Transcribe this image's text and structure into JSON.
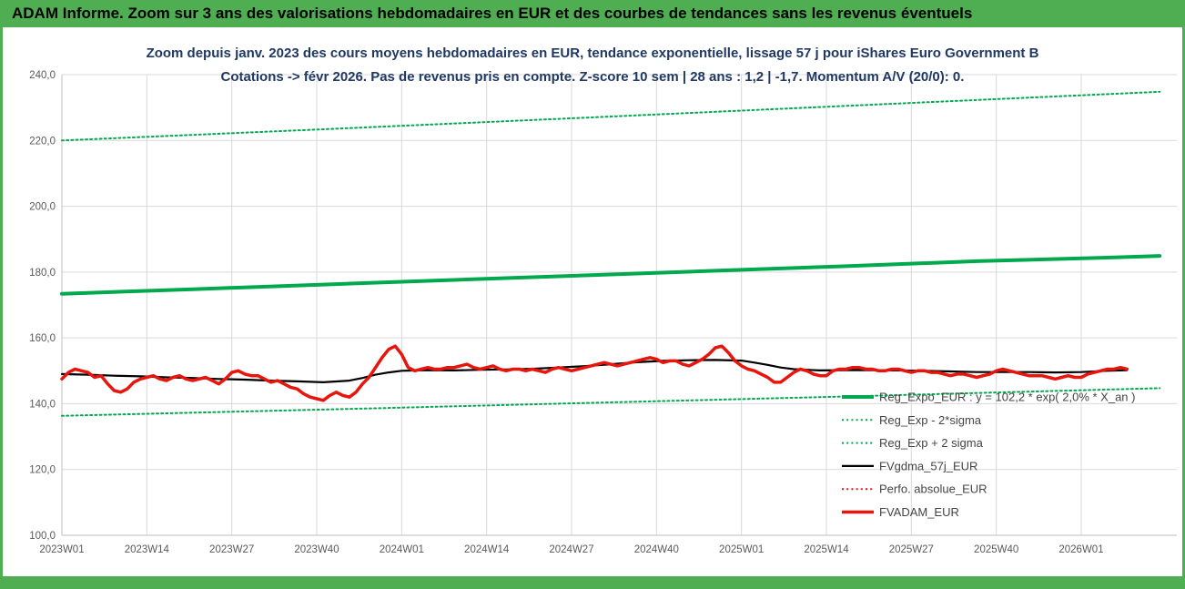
{
  "window": {
    "top_banner": "ADAM Informe. Zoom sur 3 ans des valorisations hebdomadaires en EUR et des courbes de tendances sans les revenus éventuels"
  },
  "colors": {
    "banner_green": "#4fae51",
    "series_green": "#00a94e",
    "series_red": "#e8150d",
    "series_black": "#000000",
    "grid": "#d9d9d9",
    "axis_line": "#bfbfbf",
    "axis_text": "#595959",
    "title_text": "#1f3864",
    "legend_text": "#444444"
  },
  "chart_data": {
    "type": "line",
    "title_line1": "Zoom depuis janv. 2023 des cours moyens hebdomadaires en EUR, tendance exponentielle, lissage 57 j pour iShares Euro Government B",
    "title_line2": "Cotations -> févr 2026. Pas de revenus pris en compte. Z-score 10 sem | 28 ans : 1,2 | -1,7. Momentum A/V (20/0): 0.",
    "y_axis": {
      "min": 100,
      "max": 240,
      "step": 20,
      "tick_labels": [
        "100,0",
        "120,0",
        "140,0",
        "160,0",
        "180,0",
        "200,0",
        "220,0",
        "240,0"
      ]
    },
    "x_axis": {
      "unit": "ISO week",
      "tick_labels": [
        "2023W01",
        "2023W14",
        "2023W27",
        "2023W40",
        "2024W01",
        "2024W14",
        "2024W27",
        "2024W40",
        "2025W01",
        "2025W14",
        "2025W27",
        "2025W40",
        "2026W01"
      ],
      "tick_weeks": [
        0,
        13,
        26,
        39,
        52,
        65,
        78,
        91,
        104,
        117,
        130,
        143,
        156
      ],
      "max_week": 168
    },
    "legend_position": "center-right",
    "grid": true,
    "series": [
      {
        "name": "Reg_Expo_EUR : y = 102,2 * exp( 2,0% *  X_an )",
        "color": "#00a94e",
        "width": 4,
        "dash": "solid",
        "points": [
          [
            0,
            173.4
          ],
          [
            20,
            174.8
          ],
          [
            40,
            176.2
          ],
          [
            60,
            177.6
          ],
          [
            80,
            179.0
          ],
          [
            100,
            180.4
          ],
          [
            120,
            181.8
          ],
          [
            140,
            183.3
          ],
          [
            160,
            184.4
          ],
          [
            168,
            184.9
          ]
        ]
      },
      {
        "name": "Reg_Exp - 2*sigma",
        "color": "#00a94e",
        "width": 2,
        "dash": "dot",
        "points": [
          [
            0,
            136.3
          ],
          [
            40,
            138.2
          ],
          [
            80,
            140.2
          ],
          [
            120,
            142.2
          ],
          [
            168,
            144.7
          ]
        ]
      },
      {
        "name": "Reg_Exp + 2 sigma",
        "color": "#00a94e",
        "width": 2,
        "dash": "dot",
        "points": [
          [
            0,
            220.0
          ],
          [
            40,
            223.4
          ],
          [
            80,
            226.9
          ],
          [
            120,
            230.5
          ],
          [
            168,
            234.8
          ]
        ]
      },
      {
        "name": "FVgdma_57j_EUR",
        "color": "#000000",
        "width": 2.2,
        "dash": "solid",
        "points": [
          [
            0,
            149
          ],
          [
            4,
            148.8
          ],
          [
            8,
            148.5
          ],
          [
            12,
            148.3
          ],
          [
            16,
            148
          ],
          [
            20,
            147.8
          ],
          [
            24,
            147.5
          ],
          [
            28,
            147.3
          ],
          [
            32,
            147
          ],
          [
            36,
            146.8
          ],
          [
            40,
            146.5
          ],
          [
            44,
            147
          ],
          [
            46,
            147.8
          ],
          [
            48,
            148.8
          ],
          [
            50,
            149.5
          ],
          [
            52,
            150
          ],
          [
            56,
            150.2
          ],
          [
            60,
            150.1
          ],
          [
            64,
            150.3
          ],
          [
            68,
            150.4
          ],
          [
            72,
            150.6
          ],
          [
            76,
            151
          ],
          [
            80,
            151.4
          ],
          [
            84,
            152
          ],
          [
            88,
            152.6
          ],
          [
            92,
            153
          ],
          [
            96,
            153.2
          ],
          [
            100,
            153.3
          ],
          [
            104,
            153.1
          ],
          [
            106,
            152.5
          ],
          [
            108,
            151.8
          ],
          [
            110,
            151
          ],
          [
            112,
            150.5
          ],
          [
            116,
            150.1
          ],
          [
            120,
            150.2
          ],
          [
            124,
            150.2
          ],
          [
            128,
            150.1
          ],
          [
            132,
            150
          ],
          [
            136,
            149.8
          ],
          [
            140,
            149.6
          ],
          [
            144,
            149.6
          ],
          [
            148,
            149.6
          ],
          [
            152,
            149.5
          ],
          [
            156,
            149.6
          ],
          [
            160,
            150
          ],
          [
            163,
            150.2
          ]
        ]
      },
      {
        "name": "Perfo. absolue_EUR",
        "color": "#e8150d",
        "width": 2,
        "dash": "dot",
        "points": []
      },
      {
        "name": "FVADAM_EUR",
        "color": "#e8150d",
        "width": 3.5,
        "dash": "solid",
        "points": [
          [
            0,
            147.5
          ],
          [
            1,
            149.5
          ],
          [
            2,
            150.5
          ],
          [
            3,
            150
          ],
          [
            4,
            149.5
          ],
          [
            5,
            148
          ],
          [
            6,
            148.5
          ],
          [
            7,
            146
          ],
          [
            8,
            144
          ],
          [
            9,
            143.5
          ],
          [
            10,
            144.5
          ],
          [
            11,
            146.5
          ],
          [
            12,
            147.5
          ],
          [
            13,
            148
          ],
          [
            14,
            148.5
          ],
          [
            15,
            147.5
          ],
          [
            16,
            147
          ],
          [
            17,
            148
          ],
          [
            18,
            148.5
          ],
          [
            19,
            147.5
          ],
          [
            20,
            147
          ],
          [
            21,
            147.5
          ],
          [
            22,
            148
          ],
          [
            23,
            147
          ],
          [
            24,
            146
          ],
          [
            25,
            147.5
          ],
          [
            26,
            149.5
          ],
          [
            27,
            150
          ],
          [
            28,
            149
          ],
          [
            29,
            148.5
          ],
          [
            30,
            148.5
          ],
          [
            31,
            147.5
          ],
          [
            32,
            146.5
          ],
          [
            33,
            147
          ],
          [
            34,
            146
          ],
          [
            35,
            145
          ],
          [
            36,
            144.5
          ],
          [
            37,
            143
          ],
          [
            38,
            142
          ],
          [
            39,
            141.5
          ],
          [
            40,
            141
          ],
          [
            41,
            142.5
          ],
          [
            42,
            143.5
          ],
          [
            43,
            142.5
          ],
          [
            44,
            142
          ],
          [
            45,
            143.5
          ],
          [
            46,
            146
          ],
          [
            47,
            148
          ],
          [
            48,
            151
          ],
          [
            49,
            154
          ],
          [
            50,
            156.5
          ],
          [
            51,
            157.5
          ],
          [
            52,
            155
          ],
          [
            53,
            151
          ],
          [
            54,
            150
          ],
          [
            55,
            150.5
          ],
          [
            56,
            151
          ],
          [
            57,
            150.5
          ],
          [
            58,
            150.5
          ],
          [
            59,
            151
          ],
          [
            60,
            151
          ],
          [
            61,
            151.5
          ],
          [
            62,
            152
          ],
          [
            63,
            151
          ],
          [
            64,
            150.5
          ],
          [
            65,
            151
          ],
          [
            66,
            151.5
          ],
          [
            67,
            150.5
          ],
          [
            68,
            150
          ],
          [
            69,
            150.5
          ],
          [
            70,
            150.5
          ],
          [
            71,
            150
          ],
          [
            72,
            150.5
          ],
          [
            73,
            150
          ],
          [
            74,
            149.5
          ],
          [
            75,
            150.5
          ],
          [
            76,
            151
          ],
          [
            77,
            150.5
          ],
          [
            78,
            150
          ],
          [
            79,
            150.5
          ],
          [
            80,
            151
          ],
          [
            81,
            151.5
          ],
          [
            82,
            152
          ],
          [
            83,
            152.5
          ],
          [
            84,
            152
          ],
          [
            85,
            151.5
          ],
          [
            86,
            152
          ],
          [
            87,
            152.5
          ],
          [
            88,
            153
          ],
          [
            89,
            153.5
          ],
          [
            90,
            154
          ],
          [
            91,
            153.5
          ],
          [
            92,
            152.5
          ],
          [
            93,
            153
          ],
          [
            94,
            153
          ],
          [
            95,
            152
          ],
          [
            96,
            151.5
          ],
          [
            97,
            152.5
          ],
          [
            98,
            153.5
          ],
          [
            99,
            155
          ],
          [
            100,
            157
          ],
          [
            101,
            157.5
          ],
          [
            102,
            155.5
          ],
          [
            103,
            153
          ],
          [
            104,
            151.5
          ],
          [
            105,
            150.5
          ],
          [
            106,
            150
          ],
          [
            107,
            149
          ],
          [
            108,
            148
          ],
          [
            109,
            146.5
          ],
          [
            110,
            146.5
          ],
          [
            111,
            148
          ],
          [
            112,
            149.5
          ],
          [
            113,
            150.5
          ],
          [
            114,
            150
          ],
          [
            115,
            149
          ],
          [
            116,
            148.5
          ],
          [
            117,
            148.5
          ],
          [
            118,
            150
          ],
          [
            119,
            150.5
          ],
          [
            120,
            150.5
          ],
          [
            121,
            151
          ],
          [
            122,
            151
          ],
          [
            123,
            150.5
          ],
          [
            124,
            150.5
          ],
          [
            125,
            150
          ],
          [
            126,
            150
          ],
          [
            127,
            150.5
          ],
          [
            128,
            150.5
          ],
          [
            129,
            150
          ],
          [
            130,
            149.5
          ],
          [
            131,
            150
          ],
          [
            132,
            150
          ],
          [
            133,
            149.5
          ],
          [
            134,
            149.5
          ],
          [
            135,
            149
          ],
          [
            136,
            148.5
          ],
          [
            137,
            149
          ],
          [
            138,
            149
          ],
          [
            139,
            148.5
          ],
          [
            140,
            148
          ],
          [
            141,
            148.5
          ],
          [
            142,
            149
          ],
          [
            143,
            150
          ],
          [
            144,
            150.5
          ],
          [
            145,
            150
          ],
          [
            146,
            149.5
          ],
          [
            147,
            149
          ],
          [
            148,
            148.5
          ],
          [
            149,
            148.5
          ],
          [
            150,
            148.5
          ],
          [
            151,
            148
          ],
          [
            152,
            147.5
          ],
          [
            153,
            148
          ],
          [
            154,
            148.5
          ],
          [
            155,
            148
          ],
          [
            156,
            148
          ],
          [
            157,
            149
          ],
          [
            158,
            149.5
          ],
          [
            159,
            150
          ],
          [
            160,
            150.5
          ],
          [
            161,
            150.5
          ],
          [
            162,
            151
          ],
          [
            163,
            150.5
          ]
        ]
      }
    ]
  }
}
